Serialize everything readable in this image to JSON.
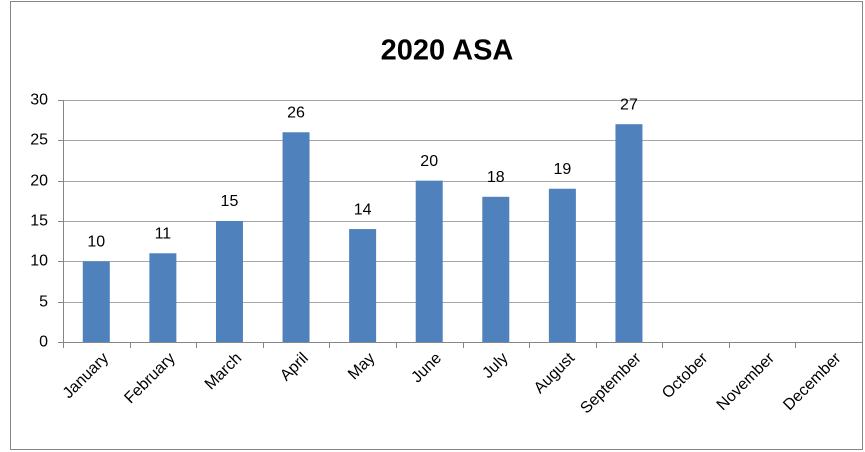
{
  "chart_data": {
    "type": "bar",
    "title": "2020 ASA",
    "categories": [
      "January",
      "February",
      "March",
      "April",
      "May",
      "June",
      "July",
      "August",
      "September",
      "October",
      "November",
      "December"
    ],
    "values": [
      10,
      11,
      15,
      26,
      14,
      20,
      18,
      19,
      27,
      null,
      null,
      null
    ],
    "color": "#4f81bd",
    "ylim": [
      0,
      30
    ],
    "yticks": [
      0,
      5,
      10,
      15,
      20,
      25,
      30
    ],
    "grid": true
  }
}
